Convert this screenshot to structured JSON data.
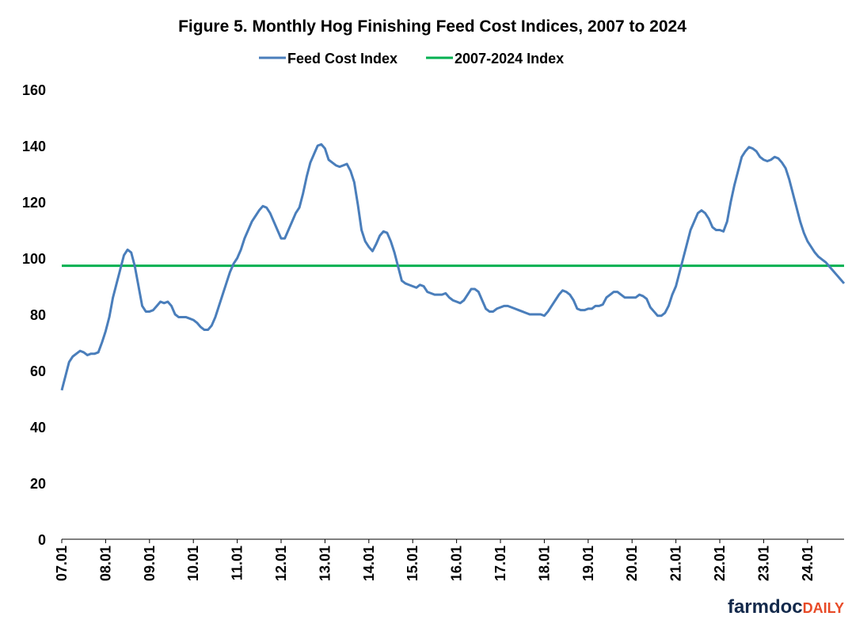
{
  "chart_data": {
    "type": "line",
    "title": "Figure 5.  Monthly Hog Finishing Feed Cost Indices, 2007 to 2024",
    "categories": [
      "07.01",
      null,
      null,
      null,
      null,
      null,
      null,
      null,
      null,
      null,
      null,
      null,
      "08.01",
      null,
      null,
      null,
      null,
      null,
      null,
      null,
      null,
      null,
      null,
      null,
      "09.01",
      null,
      null,
      null,
      null,
      null,
      null,
      null,
      null,
      null,
      null,
      null,
      "10.01",
      null,
      null,
      null,
      null,
      null,
      null,
      null,
      null,
      null,
      null,
      null,
      "11.01",
      null,
      null,
      null,
      null,
      null,
      null,
      null,
      null,
      null,
      null,
      null,
      "12.01",
      null,
      null,
      null,
      null,
      null,
      null,
      null,
      null,
      null,
      null,
      null,
      "13.01",
      null,
      null,
      null,
      null,
      null,
      null,
      null,
      null,
      null,
      null,
      null,
      "14.01",
      null,
      null,
      null,
      null,
      null,
      null,
      null,
      null,
      null,
      null,
      null,
      "15.01",
      null,
      null,
      null,
      null,
      null,
      null,
      null,
      null,
      null,
      null,
      null,
      "16.01",
      null,
      null,
      null,
      null,
      null,
      null,
      null,
      null,
      null,
      null,
      null,
      "17.01",
      null,
      null,
      null,
      null,
      null,
      null,
      null,
      null,
      null,
      null,
      null,
      "18.01",
      null,
      null,
      null,
      null,
      null,
      null,
      null,
      null,
      null,
      null,
      null,
      "19.01",
      null,
      null,
      null,
      null,
      null,
      null,
      null,
      null,
      null,
      null,
      null,
      "20.01",
      null,
      null,
      null,
      null,
      null,
      null,
      null,
      null,
      null,
      null,
      null,
      "21.01",
      null,
      null,
      null,
      null,
      null,
      null,
      null,
      null,
      null,
      null,
      null,
      "22.01",
      null,
      null,
      null,
      null,
      null,
      null,
      null,
      null,
      null,
      null,
      null,
      "23.01",
      null,
      null,
      null,
      null,
      null,
      null,
      null,
      null,
      null,
      null,
      null,
      "24.01",
      null,
      null,
      null,
      null,
      null,
      null,
      null,
      null,
      null,
      null
    ],
    "series": [
      {
        "name": "Feed Cost Index",
        "color": "#4a7ebb",
        "values": [
          53,
          58,
          63,
          65,
          66,
          67,
          66.5,
          65.5,
          66,
          66,
          66.5,
          70,
          74,
          79,
          86,
          91,
          96,
          101,
          103,
          102,
          97,
          90,
          83,
          81,
          81,
          81.5,
          83,
          84.5,
          84,
          84.5,
          83,
          80,
          79,
          79,
          79,
          78.5,
          78,
          77,
          75.5,
          74.5,
          74.5,
          76,
          79,
          83,
          87,
          91,
          95,
          98,
          100,
          103,
          107,
          110,
          113,
          115,
          117,
          118.5,
          118,
          116,
          113,
          110,
          107,
          107,
          110,
          113,
          116,
          118,
          123,
          129,
          134,
          137,
          140,
          140.5,
          139,
          135,
          134,
          133,
          132.5,
          133,
          133.5,
          131,
          127,
          119,
          110,
          106,
          104,
          102.5,
          105,
          108,
          109.5,
          109,
          106,
          102,
          97,
          92,
          91,
          90.5,
          90,
          89.5,
          90.5,
          90,
          88,
          87.5,
          87,
          87,
          87,
          87.5,
          86,
          85,
          84.5,
          84,
          85,
          87,
          89,
          89,
          88,
          85,
          82,
          81,
          81,
          82,
          82.5,
          83,
          83,
          82.5,
          82,
          81.5,
          81,
          80.5,
          80,
          80,
          80,
          80,
          79.5,
          81,
          83,
          85,
          87,
          88.5,
          88,
          87,
          85,
          82,
          81.5,
          81.5,
          82,
          82,
          83,
          83,
          83.5,
          86,
          87,
          88,
          88,
          87,
          86,
          86,
          86,
          86,
          87,
          86.5,
          85.5,
          82.5,
          81,
          79.5,
          79.5,
          80.5,
          83,
          87,
          90,
          95,
          100,
          105,
          110,
          113,
          116,
          117,
          116,
          114,
          111,
          110,
          110,
          109.5,
          113,
          120,
          126,
          131,
          136,
          138,
          139.5,
          139,
          138,
          136,
          135,
          134.5,
          135,
          136,
          135.5,
          134,
          132,
          128,
          123,
          118,
          113,
          109,
          106,
          104,
          102,
          100.5,
          99.5,
          98.5,
          97,
          95.5,
          94,
          92.5,
          91
        ]
      }
    ],
    "reference_lines": [
      {
        "name": "2007-2024 Index",
        "color": "#00b050",
        "value": 97.3
      }
    ],
    "ylim": [
      0,
      160
    ],
    "yticks": [
      0,
      20,
      40,
      60,
      80,
      100,
      120,
      140,
      160
    ],
    "grid": false,
    "legend": "top",
    "branding": [
      "farmdoc",
      "DAILY"
    ]
  }
}
